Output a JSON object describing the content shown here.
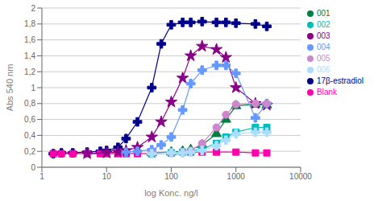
{
  "chart_data": {
    "type": "line",
    "xlabel": "log Konc. ng/l",
    "ylabel": "Abs 540 nm",
    "log": "x",
    "grid": "y",
    "legend": "right",
    "xlim": [
      1,
      10000
    ],
    "xticks": [
      1,
      10,
      100,
      1000,
      10000
    ],
    "ylim": [
      0,
      2
    ],
    "yticks": [
      0,
      {
        "value": 0.2,
        "label": "0,2"
      },
      {
        "value": 0.4,
        "label": "0,4"
      },
      {
        "value": 0.6,
        "label": "0,6"
      },
      {
        "value": 0.8,
        "label": "0,8"
      },
      1,
      {
        "value": 1.2,
        "label": "1,2"
      },
      {
        "value": 1.4,
        "label": "1,4"
      },
      {
        "value": 1.6,
        "label": "1,6"
      },
      {
        "value": 1.8,
        "label": "1,8"
      },
      2
    ],
    "series": [
      {
        "name": "17β-estradiol",
        "color": "#00008B",
        "marker": "plus",
        "x": [
          1.5,
          2,
          3,
          5,
          8,
          10,
          15,
          20,
          30,
          50,
          70,
          100,
          150,
          200,
          300,
          500,
          700,
          1000,
          2000,
          3000
        ],
        "values": [
          0.17,
          0.18,
          0.18,
          0.19,
          0.2,
          0.21,
          0.25,
          0.36,
          0.57,
          1.0,
          1.55,
          1.79,
          1.82,
          1.82,
          1.83,
          1.82,
          1.82,
          1.81,
          1.8,
          1.77
        ]
      },
      {
        "name": "Blank",
        "color": "#FF00AA",
        "marker": "square",
        "x": [
          1.5,
          2,
          3,
          5,
          8,
          10,
          15,
          20,
          30,
          50,
          100,
          200,
          300,
          500,
          1000,
          2000,
          3000
        ],
        "values": [
          0.17,
          0.17,
          0.17,
          0.17,
          0.17,
          0.17,
          0.17,
          0.17,
          0.17,
          0.17,
          0.18,
          0.19,
          0.19,
          0.19,
          0.19,
          0.18,
          0.18
        ]
      },
      {
        "name": "001",
        "color": "#008040",
        "marker": "triangle",
        "x": [
          50,
          100,
          150,
          200,
          300,
          500,
          700,
          1000,
          2000,
          3000
        ],
        "values": [
          0.18,
          0.19,
          0.2,
          0.22,
          0.28,
          0.42,
          0.6,
          0.77,
          0.79,
          0.78
        ]
      },
      {
        "name": "002",
        "color": "#00BBBB",
        "marker": "square",
        "x": [
          50,
          100,
          150,
          200,
          300,
          500,
          700,
          1000,
          2000,
          3000
        ],
        "values": [
          0.17,
          0.18,
          0.19,
          0.2,
          0.23,
          0.3,
          0.38,
          0.44,
          0.5,
          0.5
        ]
      },
      {
        "name": "003",
        "color": "#880088",
        "marker": "star",
        "x": [
          5,
          10,
          15,
          20,
          30,
          50,
          70,
          100,
          150,
          200,
          300,
          500,
          700,
          1000,
          2000,
          3000
        ],
        "values": [
          0.17,
          0.18,
          0.19,
          0.21,
          0.25,
          0.38,
          0.57,
          0.82,
          1.12,
          1.4,
          1.52,
          1.48,
          1.38,
          1.0,
          0.8,
          0.78
        ]
      },
      {
        "name": "004",
        "color": "#6699FF",
        "marker": "plus",
        "x": [
          20,
          30,
          50,
          70,
          100,
          150,
          200,
          300,
          500,
          700,
          1000,
          2000,
          3000
        ],
        "values": [
          0.19,
          0.2,
          0.22,
          0.28,
          0.38,
          0.72,
          1.05,
          1.22,
          1.28,
          1.28,
          1.18,
          0.62,
          0.8
        ]
      },
      {
        "name": "005",
        "color": "#CC88CC",
        "marker": "circle",
        "x": [
          50,
          100,
          150,
          200,
          300,
          500,
          700,
          1000,
          2000,
          3000
        ],
        "values": [
          0.18,
          0.18,
          0.19,
          0.21,
          0.3,
          0.5,
          0.66,
          0.79,
          0.8,
          0.8
        ]
      },
      {
        "name": "006",
        "color": "#AADDFF",
        "marker": "plus",
        "x": [
          50,
          100,
          150,
          200,
          300,
          500,
          700,
          1000,
          2000,
          3000
        ],
        "values": [
          0.17,
          0.18,
          0.18,
          0.19,
          0.21,
          0.27,
          0.34,
          0.42,
          0.44,
          0.44
        ]
      }
    ]
  }
}
